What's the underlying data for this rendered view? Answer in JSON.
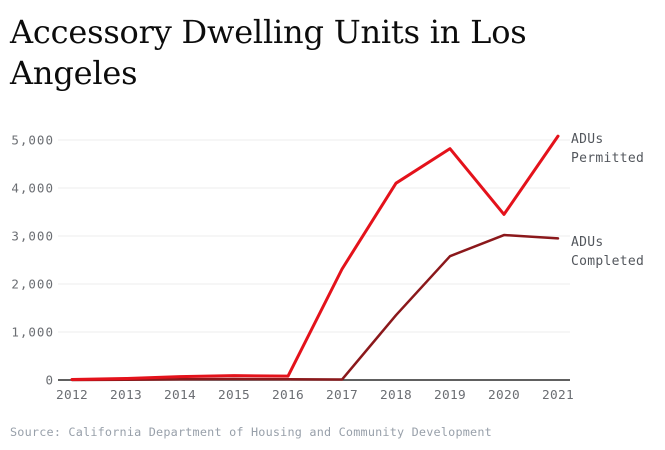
{
  "title": "Accessory Dwelling Units in Los Angeles",
  "source": "Source: California Department of Housing and Community Development",
  "chart_data": {
    "type": "line",
    "title": "Accessory Dwelling Units in Los Angeles",
    "xlabel": "",
    "ylabel": "",
    "x": [
      2012,
      2013,
      2014,
      2015,
      2016,
      2017,
      2018,
      2019,
      2020,
      2021
    ],
    "series": [
      {
        "id": "permitted",
        "label": "ADUs Permitted",
        "color": "#e4121b",
        "stroke_width": 3,
        "values": [
          10,
          30,
          70,
          90,
          80,
          2310,
          4100,
          4820,
          3450,
          5080
        ]
      },
      {
        "id": "completed",
        "label": "ADUs Completed",
        "color": "#8b181b",
        "stroke_width": 2.5,
        "values": [
          0,
          5,
          15,
          20,
          15,
          10,
          1350,
          2580,
          3020,
          2950
        ]
      }
    ],
    "ylim": [
      0,
      5000
    ],
    "ytick": 1000,
    "grid": true,
    "gridlines": "horizontal",
    "legend_position": "right-of-line-ends",
    "grid_color": "#ececec",
    "axis_color": "#2b2b2b",
    "tick_label_color": "#6b6e73"
  }
}
